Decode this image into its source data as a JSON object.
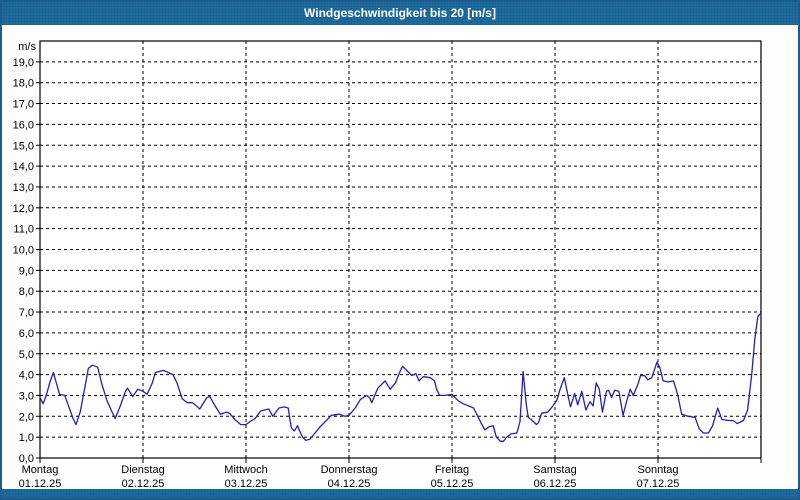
{
  "window": {
    "title": "Windgeschwindigkeit bis 20 [m/s]"
  },
  "colors": {
    "bar_blue": "#1e6c9e",
    "border_blue": "#1b5c8f",
    "plot_background": "#fefffe",
    "grid": "#000000",
    "line": "#2121b8",
    "title_text": "#ffffff",
    "axis_text": "#000000"
  },
  "chart_data": {
    "type": "line",
    "title": "Windgeschwindigkeit bis 20 [m/s]",
    "unit_label": "m/s",
    "ylim": [
      0,
      20
    ],
    "y_tick_step": 1.0,
    "y_tick_labels": [
      "0,0",
      "1,0",
      "2,0",
      "3,0",
      "4,0",
      "5,0",
      "6,0",
      "7,0",
      "8,0",
      "9,0",
      "10,0",
      "11,0",
      "12,0",
      "13,0",
      "14,0",
      "15,0",
      "16,0",
      "17,0",
      "18,0",
      "19,0"
    ],
    "grid": "dashed",
    "legend": "none",
    "x_days": [
      {
        "day": "Montag",
        "date": "01.12.25"
      },
      {
        "day": "Dienstag",
        "date": "02.12.25"
      },
      {
        "day": "Mittwoch",
        "date": "03.12.25"
      },
      {
        "day": "Donnerstag",
        "date": "04.12.25"
      },
      {
        "day": "Freitag",
        "date": "05.12.25"
      },
      {
        "day": "Samstag",
        "date": "06.12.25"
      },
      {
        "day": "Sonntag",
        "date": "07.12.25"
      }
    ],
    "series": [
      {
        "name": "Windgeschwindigkeit",
        "unit": "m/s",
        "points": [
          [
            0.0,
            2.9
          ],
          [
            0.03,
            2.6
          ],
          [
            0.06,
            3.0
          ],
          [
            0.1,
            3.7
          ],
          [
            0.13,
            4.1
          ],
          [
            0.17,
            3.4
          ],
          [
            0.19,
            3.05
          ],
          [
            0.24,
            3.0
          ],
          [
            0.27,
            2.6
          ],
          [
            0.32,
            1.9
          ],
          [
            0.35,
            1.6
          ],
          [
            0.39,
            2.2
          ],
          [
            0.44,
            3.5
          ],
          [
            0.47,
            4.3
          ],
          [
            0.51,
            4.45
          ],
          [
            0.56,
            4.35
          ],
          [
            0.6,
            3.55
          ],
          [
            0.65,
            2.75
          ],
          [
            0.7,
            2.2
          ],
          [
            0.73,
            1.9
          ],
          [
            0.78,
            2.5
          ],
          [
            0.83,
            3.2
          ],
          [
            0.85,
            3.35
          ],
          [
            0.9,
            2.95
          ],
          [
            0.95,
            3.3
          ],
          [
            1.0,
            3.2
          ],
          [
            1.04,
            3.05
          ],
          [
            1.09,
            3.6
          ],
          [
            1.12,
            4.1
          ],
          [
            1.2,
            4.2
          ],
          [
            1.29,
            4.0
          ],
          [
            1.33,
            3.6
          ],
          [
            1.38,
            2.85
          ],
          [
            1.43,
            2.65
          ],
          [
            1.48,
            2.65
          ],
          [
            1.53,
            2.45
          ],
          [
            1.55,
            2.35
          ],
          [
            1.62,
            2.9
          ],
          [
            1.65,
            2.95
          ],
          [
            1.7,
            2.5
          ],
          [
            1.75,
            2.1
          ],
          [
            1.81,
            2.2
          ],
          [
            1.84,
            2.15
          ],
          [
            1.89,
            1.85
          ],
          [
            1.95,
            1.6
          ],
          [
            2.0,
            1.6
          ],
          [
            2.04,
            1.75
          ],
          [
            2.09,
            1.9
          ],
          [
            2.14,
            2.25
          ],
          [
            2.18,
            2.3
          ],
          [
            2.22,
            2.35
          ],
          [
            2.26,
            2.0
          ],
          [
            2.32,
            2.4
          ],
          [
            2.37,
            2.45
          ],
          [
            2.41,
            2.4
          ],
          [
            2.44,
            1.45
          ],
          [
            2.47,
            1.3
          ],
          [
            2.5,
            1.55
          ],
          [
            2.52,
            1.3
          ],
          [
            2.55,
            1.0
          ],
          [
            2.58,
            0.85
          ],
          [
            2.62,
            0.9
          ],
          [
            2.67,
            1.2
          ],
          [
            2.72,
            1.5
          ],
          [
            2.79,
            1.85
          ],
          [
            2.83,
            2.05
          ],
          [
            2.91,
            2.1
          ],
          [
            2.96,
            2.0
          ],
          [
            3.0,
            2.05
          ],
          [
            3.06,
            2.4
          ],
          [
            3.11,
            2.8
          ],
          [
            3.17,
            3.0
          ],
          [
            3.2,
            2.9
          ],
          [
            3.22,
            2.65
          ],
          [
            3.28,
            3.35
          ],
          [
            3.35,
            3.7
          ],
          [
            3.4,
            3.3
          ],
          [
            3.45,
            3.6
          ],
          [
            3.5,
            4.2
          ],
          [
            3.52,
            4.4
          ],
          [
            3.57,
            4.15
          ],
          [
            3.61,
            3.95
          ],
          [
            3.65,
            4.05
          ],
          [
            3.68,
            3.7
          ],
          [
            3.72,
            3.9
          ],
          [
            3.79,
            3.85
          ],
          [
            3.83,
            3.7
          ],
          [
            3.85,
            3.3
          ],
          [
            3.88,
            3.0
          ],
          [
            3.94,
            3.0
          ],
          [
            4.0,
            3.05
          ],
          [
            4.06,
            2.75
          ],
          [
            4.11,
            2.6
          ],
          [
            4.16,
            2.5
          ],
          [
            4.21,
            2.4
          ],
          [
            4.29,
            1.6
          ],
          [
            4.32,
            1.35
          ],
          [
            4.36,
            1.5
          ],
          [
            4.4,
            1.55
          ],
          [
            4.43,
            1.0
          ],
          [
            4.47,
            0.8
          ],
          [
            4.5,
            0.8
          ],
          [
            4.53,
            1.0
          ],
          [
            4.57,
            1.15
          ],
          [
            4.63,
            1.2
          ],
          [
            4.66,
            1.75
          ],
          [
            4.69,
            4.15
          ],
          [
            4.72,
            2.6
          ],
          [
            4.74,
            1.95
          ],
          [
            4.78,
            1.8
          ],
          [
            4.82,
            1.6
          ],
          [
            4.84,
            1.7
          ],
          [
            4.87,
            2.15
          ],
          [
            4.93,
            2.2
          ],
          [
            4.98,
            2.5
          ],
          [
            5.02,
            2.8
          ],
          [
            5.05,
            3.3
          ],
          [
            5.09,
            3.85
          ],
          [
            5.13,
            2.9
          ],
          [
            5.15,
            2.45
          ],
          [
            5.19,
            3.1
          ],
          [
            5.22,
            2.55
          ],
          [
            5.26,
            3.2
          ],
          [
            5.3,
            2.3
          ],
          [
            5.34,
            2.7
          ],
          [
            5.37,
            2.5
          ],
          [
            5.4,
            3.6
          ],
          [
            5.43,
            3.3
          ],
          [
            5.46,
            2.2
          ],
          [
            5.5,
            3.2
          ],
          [
            5.52,
            3.25
          ],
          [
            5.55,
            2.9
          ],
          [
            5.58,
            3.25
          ],
          [
            5.62,
            3.2
          ],
          [
            5.66,
            2.05
          ],
          [
            5.7,
            2.8
          ],
          [
            5.73,
            3.3
          ],
          [
            5.76,
            3.0
          ],
          [
            5.81,
            3.6
          ],
          [
            5.83,
            3.95
          ],
          [
            5.87,
            3.95
          ],
          [
            5.9,
            3.75
          ],
          [
            5.94,
            3.85
          ],
          [
            5.99,
            4.6
          ],
          [
            6.02,
            4.3
          ],
          [
            6.05,
            3.7
          ],
          [
            6.1,
            3.65
          ],
          [
            6.15,
            3.7
          ],
          [
            6.19,
            3.05
          ],
          [
            6.23,
            2.1
          ],
          [
            6.29,
            2.0
          ],
          [
            6.36,
            1.95
          ],
          [
            6.4,
            1.4
          ],
          [
            6.44,
            1.2
          ],
          [
            6.49,
            1.2
          ],
          [
            6.53,
            1.55
          ],
          [
            6.58,
            2.4
          ],
          [
            6.62,
            1.85
          ],
          [
            6.68,
            1.8
          ],
          [
            6.73,
            1.8
          ],
          [
            6.77,
            1.65
          ],
          [
            6.83,
            1.8
          ],
          [
            6.87,
            2.3
          ],
          [
            6.91,
            4.0
          ],
          [
            6.94,
            5.7
          ],
          [
            6.97,
            6.8
          ],
          [
            6.99,
            6.9
          ]
        ]
      }
    ]
  }
}
